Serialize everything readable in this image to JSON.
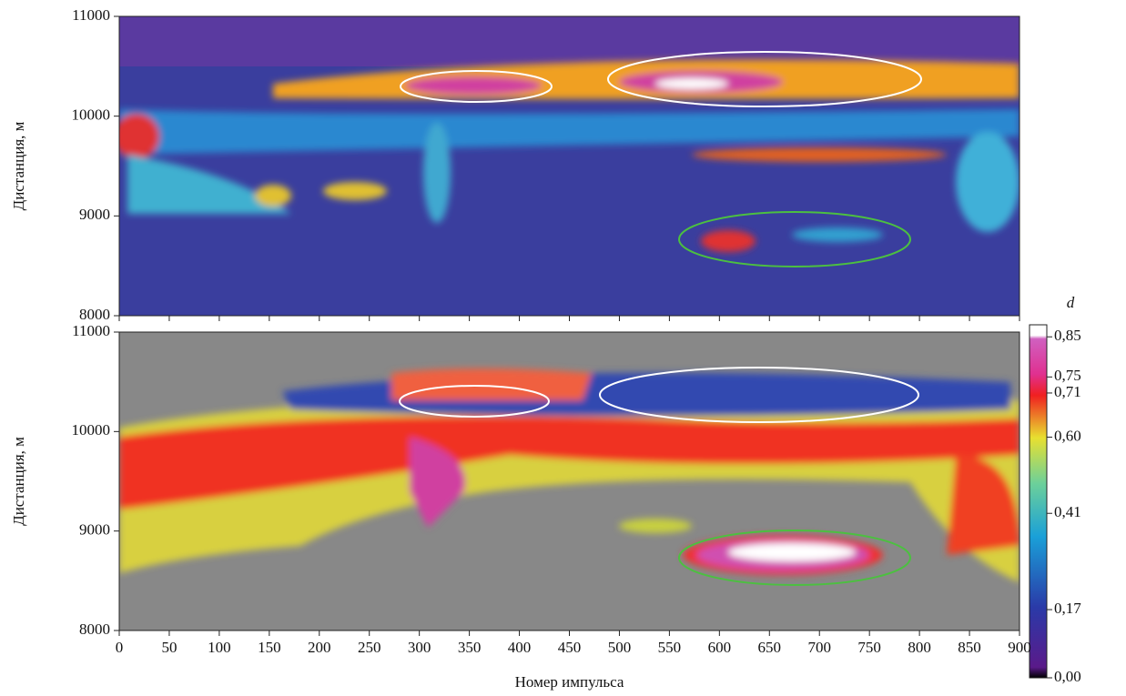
{
  "chart_data": [
    {
      "type": "heatmap",
      "ylabel": "Дистанция, м",
      "xlim": [
        0,
        900
      ],
      "xticks": [
        0,
        50,
        100,
        150,
        200,
        250,
        300,
        350,
        400,
        450,
        500,
        550,
        600,
        650,
        700,
        750,
        800,
        850,
        900
      ],
      "ylim": [
        8000,
        11000
      ],
      "yticks": [
        8000,
        9000,
        10000,
        11000
      ]
    },
    {
      "type": "heatmap",
      "ylabel": "Дистанция, м",
      "xlabel": "Номер импульса",
      "xlim": [
        0,
        900
      ],
      "xticks": [
        0,
        50,
        100,
        150,
        200,
        250,
        300,
        350,
        400,
        450,
        500,
        550,
        600,
        650,
        700,
        750,
        800,
        850,
        900
      ],
      "ylim": [
        8000,
        11000
      ],
      "yticks": [
        8000,
        9000,
        10000,
        11000
      ],
      "colorbar": {
        "label": "d",
        "lim": [
          0,
          0.88
        ],
        "ticks": [
          {
            "value": 0,
            "label": "0,00"
          },
          {
            "value": 0.17,
            "label": "0,17"
          },
          {
            "value": 0.41,
            "label": "0,41"
          },
          {
            "value": 0.6,
            "label": "0,60"
          },
          {
            "value": 0.71,
            "label": "0,71"
          },
          {
            "value": 0.75,
            "label": "0,75"
          },
          {
            "value": 0.85,
            "label": "0,85"
          }
        ]
      }
    }
  ]
}
